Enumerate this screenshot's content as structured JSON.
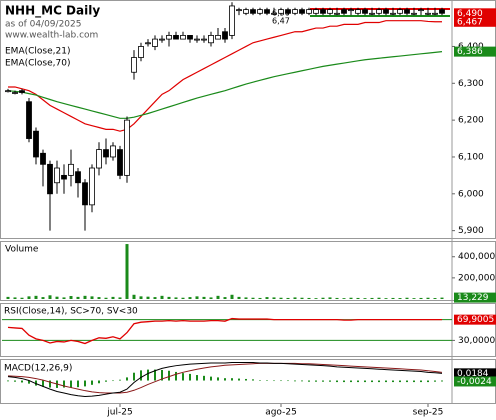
{
  "chart_data": [
    {
      "type": "candlestick",
      "title": "NHH_MC Daily",
      "subtitle": "as of 04/09/2025",
      "source": "www.wealth-lab.com",
      "open": [
        6.28,
        6.275,
        6.28,
        6.25,
        6.17,
        6.11,
        6.08,
        6.03,
        6.05,
        6.05,
        6.06,
        6.03,
        5.97,
        6.07,
        6.12,
        6.1,
        6.12,
        6.05,
        6.33,
        6.37,
        6.41,
        6.4,
        6.42,
        6.42,
        6.43,
        6.42,
        6.43,
        6.42,
        6.42,
        6.41,
        6.42,
        6.44,
        6.43,
        6.5,
        6.49,
        6.5,
        6.49,
        6.5,
        6.49,
        6.49,
        6.5,
        6.49,
        6.5,
        6.49,
        6.49,
        6.5,
        6.49,
        6.49,
        6.5,
        6.5,
        6.49,
        6.5,
        6.49,
        6.49,
        6.5,
        6.49,
        6.49,
        6.5,
        6.49,
        6.5,
        6.49,
        6.49,
        6.5
      ],
      "high": [
        6.285,
        6.28,
        6.285,
        6.26,
        6.18,
        6.12,
        6.09,
        6.09,
        6.08,
        6.12,
        6.07,
        6.04,
        6.08,
        6.14,
        6.15,
        6.14,
        6.13,
        6.21,
        6.39,
        6.41,
        6.42,
        6.43,
        6.43,
        6.44,
        6.44,
        6.44,
        6.43,
        6.43,
        6.43,
        6.44,
        6.45,
        6.45,
        6.52,
        6.505,
        6.505,
        6.505,
        6.505,
        6.505,
        6.505,
        6.505,
        6.505,
        6.505,
        6.505,
        6.505,
        6.505,
        6.505,
        6.505,
        6.505,
        6.505,
        6.505,
        6.505,
        6.505,
        6.505,
        6.505,
        6.505,
        6.505,
        6.505,
        6.505,
        6.505,
        6.505,
        6.505,
        6.505,
        6.505
      ],
      "low": [
        6.275,
        6.27,
        6.27,
        6.14,
        6.08,
        6.02,
        5.9,
        6.0,
        6.0,
        6.02,
        5.99,
        5.9,
        5.95,
        6.05,
        6.08,
        6.09,
        6.04,
        6.03,
        6.31,
        6.36,
        6.4,
        6.39,
        6.41,
        6.4,
        6.42,
        6.42,
        6.41,
        6.41,
        6.41,
        6.4,
        6.42,
        6.41,
        6.42,
        6.485,
        6.485,
        6.485,
        6.485,
        6.485,
        6.485,
        6.485,
        6.485,
        6.485,
        6.485,
        6.485,
        6.485,
        6.485,
        6.485,
        6.485,
        6.485,
        6.485,
        6.485,
        6.485,
        6.485,
        6.485,
        6.485,
        6.485,
        6.485,
        6.485,
        6.485,
        6.485,
        6.485,
        6.485,
        6.485
      ],
      "close": [
        6.28,
        6.275,
        6.275,
        6.15,
        6.1,
        6.08,
        6.0,
        6.07,
        6.04,
        6.08,
        6.03,
        5.97,
        6.07,
        6.12,
        6.1,
        6.13,
        6.05,
        6.2,
        6.37,
        6.4,
        6.41,
        6.42,
        6.42,
        6.43,
        6.42,
        6.43,
        6.42,
        6.42,
        6.42,
        6.43,
        6.43,
        6.42,
        6.51,
        6.5,
        6.5,
        6.49,
        6.5,
        6.49,
        6.49,
        6.5,
        6.49,
        6.5,
        6.49,
        6.5,
        6.5,
        6.49,
        6.5,
        6.49,
        6.49,
        6.5,
        6.5,
        6.49,
        6.49,
        6.5,
        6.49,
        6.49,
        6.5,
        6.49,
        6.49,
        6.5,
        6.49,
        6.49,
        6.49
      ],
      "series": [
        {
          "name": "EMA(Close,21)",
          "color": "#e00000",
          "values": [
            6.29,
            6.29,
            6.285,
            6.28,
            6.27,
            6.255,
            6.24,
            6.23,
            6.22,
            6.21,
            6.2,
            6.19,
            6.185,
            6.18,
            6.175,
            6.175,
            6.17,
            6.175,
            6.19,
            6.21,
            6.23,
            6.25,
            6.27,
            6.28,
            6.295,
            6.31,
            6.32,
            6.33,
            6.34,
            6.35,
            6.36,
            6.37,
            6.38,
            6.39,
            6.4,
            6.41,
            6.415,
            6.42,
            6.425,
            6.43,
            6.435,
            6.44,
            6.44,
            6.445,
            6.45,
            6.45,
            6.455,
            6.455,
            6.46,
            6.46,
            6.46,
            6.465,
            6.465,
            6.465,
            6.47,
            6.47,
            6.47,
            6.47,
            6.47,
            6.47,
            6.468,
            6.467,
            6.467
          ]
        },
        {
          "name": "EMA(Close,70)",
          "color": "#1a8a1a",
          "values": [
            6.28,
            6.278,
            6.276,
            6.272,
            6.268,
            6.262,
            6.256,
            6.25,
            6.245,
            6.24,
            6.235,
            6.23,
            6.225,
            6.22,
            6.215,
            6.21,
            6.205,
            6.205,
            6.208,
            6.213,
            6.218,
            6.224,
            6.23,
            6.236,
            6.242,
            6.248,
            6.254,
            6.26,
            6.265,
            6.27,
            6.275,
            6.28,
            6.286,
            6.292,
            6.298,
            6.303,
            6.308,
            6.313,
            6.318,
            6.322,
            6.326,
            6.33,
            6.334,
            6.338,
            6.342,
            6.346,
            6.349,
            6.352,
            6.355,
            6.358,
            6.361,
            6.364,
            6.366,
            6.368,
            6.37,
            6.372,
            6.374,
            6.376,
            6.378,
            6.38,
            6.382,
            6.384,
            6.386
          ]
        }
      ],
      "ylim": [
        5.88,
        6.518
      ],
      "yticks": [
        {
          "value": 5.9,
          "label": "5,900"
        },
        {
          "value": 6.0,
          "label": "6,000"
        },
        {
          "value": 6.1,
          "label": "6,100"
        },
        {
          "value": 6.2,
          "label": "6,200"
        },
        {
          "value": 6.3,
          "label": "6,300"
        },
        {
          "value": 6.4,
          "label": "6,400"
        }
      ],
      "tags": [
        {
          "value": 6.49,
          "label": "6,490",
          "color": "#e00000"
        },
        {
          "value": 6.467,
          "label": "6,467",
          "color": "#e00000"
        },
        {
          "value": 6.386,
          "label": "6,386",
          "color": "#1a8a1a"
        }
      ],
      "annotations": [
        "6,50",
        "6,47"
      ]
    },
    {
      "type": "bar",
      "title": "Volume",
      "color": "#1a8a1a",
      "values": [
        20000,
        15000,
        12000,
        25000,
        30000,
        18000,
        35000,
        22000,
        15000,
        28000,
        20000,
        30000,
        25000,
        18000,
        12000,
        20000,
        15000,
        520000,
        40000,
        25000,
        22000,
        18000,
        30000,
        20000,
        15000,
        12000,
        18000,
        25000,
        20000,
        15000,
        30000,
        18000,
        40000,
        20000,
        15000,
        12000,
        10000,
        18000,
        15000,
        12000,
        10000,
        15000,
        12000,
        10000,
        8000,
        12000,
        15000,
        10000,
        8000,
        12000,
        10000,
        8000,
        10000,
        12000,
        8000,
        10000,
        9000,
        12000,
        8000,
        10000,
        12000,
        9000,
        13229
      ],
      "ylim": [
        0,
        530000
      ],
      "yticks": [
        {
          "value": 200000,
          "label": "200,000"
        },
        {
          "value": 400000,
          "label": "400,000"
        }
      ],
      "tags": [
        {
          "value": 13229,
          "label": "13,229",
          "color": "#1a8a1a"
        }
      ]
    },
    {
      "type": "line",
      "title": "RSI(Close,14), SC>70, SV<30",
      "color": "#e00000",
      "values": [
        55,
        54,
        53,
        40,
        33,
        30,
        25,
        28,
        27,
        30,
        28,
        24,
        30,
        35,
        34,
        37,
        33,
        45,
        62,
        65,
        66,
        67,
        67,
        68,
        67,
        68,
        67,
        67,
        67,
        68,
        68,
        67,
        72,
        71,
        71,
        71,
        71,
        71,
        70,
        70,
        70,
        70,
        70,
        70,
        70,
        70,
        70,
        70,
        69,
        69,
        70,
        70,
        70,
        70,
        70,
        70,
        70,
        70,
        70,
        70,
        70,
        70,
        69.9005
      ],
      "ylim": [
        0,
        100
      ],
      "levels": [
        30,
        70
      ],
      "level_color": "#1a8a1a",
      "yticks": [
        {
          "value": 30,
          "label": "30,0000"
        }
      ],
      "tags": [
        {
          "value": 69.9005,
          "label": "69,9005",
          "color": "#e00000"
        }
      ]
    },
    {
      "type": "macd",
      "title": "MACD(12,26,9)",
      "categories": [
        null,
        null,
        null,
        null,
        null,
        null,
        null,
        null,
        null,
        null,
        null,
        null,
        null,
        null,
        null,
        null,
        "jul-25",
        null,
        null,
        null,
        null,
        null,
        null,
        null,
        null,
        null,
        null,
        null,
        null,
        null,
        null,
        null,
        null,
        null,
        null,
        null,
        null,
        null,
        null,
        "ago-25",
        null,
        null,
        null,
        null,
        null,
        null,
        null,
        null,
        null,
        null,
        null,
        null,
        null,
        null,
        null,
        null,
        null,
        null,
        null,
        null,
        "sep-25",
        null,
        null
      ],
      "macd": [
        0.01,
        0.008,
        0.005,
        0,
        -0.008,
        -0.015,
        -0.022,
        -0.028,
        -0.032,
        -0.036,
        -0.039,
        -0.041,
        -0.04,
        -0.038,
        -0.035,
        -0.032,
        -0.03,
        -0.022,
        -0.005,
        0.008,
        0.018,
        0.025,
        0.031,
        0.035,
        0.038,
        0.04,
        0.042,
        0.043,
        0.044,
        0.045,
        0.045,
        0.045,
        0.046,
        0.046,
        0.046,
        0.046,
        0.045,
        0.045,
        0.044,
        0.044,
        0.043,
        0.042,
        0.041,
        0.04,
        0.039,
        0.038,
        0.037,
        0.035,
        0.034,
        0.033,
        0.032,
        0.031,
        0.03,
        0.029,
        0.028,
        0.027,
        0.026,
        0.025,
        0.024,
        0.023,
        0.021,
        0.02,
        0.0184
      ],
      "signal": [
        0.012,
        0.011,
        0.01,
        0.008,
        0.005,
        0.001,
        -0.004,
        -0.009,
        -0.014,
        -0.018,
        -0.022,
        -0.026,
        -0.029,
        -0.031,
        -0.032,
        -0.032,
        -0.032,
        -0.03,
        -0.025,
        -0.018,
        -0.01,
        -0.003,
        0.004,
        0.01,
        0.016,
        0.021,
        0.025,
        0.029,
        0.032,
        0.035,
        0.037,
        0.039,
        0.04,
        0.041,
        0.042,
        0.043,
        0.044,
        0.044,
        0.044,
        0.044,
        0.044,
        0.044,
        0.043,
        0.043,
        0.042,
        0.041,
        0.04,
        0.039,
        0.038,
        0.037,
        0.036,
        0.035,
        0.034,
        0.033,
        0.032,
        0.031,
        0.03,
        0.029,
        0.028,
        0.027,
        0.025,
        0.023,
        0.0208
      ],
      "histogram": [
        -0.002,
        -0.003,
        -0.005,
        -0.008,
        -0.013,
        -0.016,
        -0.018,
        -0.019,
        -0.018,
        -0.018,
        -0.017,
        -0.015,
        -0.011,
        -0.007,
        -0.003,
        0,
        0.002,
        0.008,
        0.02,
        0.026,
        0.028,
        0.028,
        0.027,
        0.025,
        0.022,
        0.019,
        0.017,
        0.014,
        0.012,
        0.01,
        0.008,
        0.006,
        0.006,
        0.005,
        0.004,
        0.003,
        0.001,
        0.001,
        0,
        0,
        -0.001,
        -0.002,
        -0.002,
        -0.003,
        -0.003,
        -0.003,
        -0.003,
        -0.004,
        -0.004,
        -0.004,
        -0.004,
        -0.004,
        -0.004,
        -0.004,
        -0.004,
        -0.004,
        -0.004,
        -0.004,
        -0.004,
        -0.004,
        -0.004,
        -0.003,
        -0.0024
      ],
      "macd_color": "#000000",
      "signal_color": "#8b1a1a",
      "histogram_color": "#1a8a1a",
      "ylim": [
        -0.055,
        0.05
      ],
      "tags": [
        {
          "value": 0.0184,
          "label": "0,0184",
          "color": "#000000"
        },
        {
          "value": -0.0024,
          "label": "-0,0024",
          "color": "#1a8a1a"
        }
      ]
    }
  ]
}
